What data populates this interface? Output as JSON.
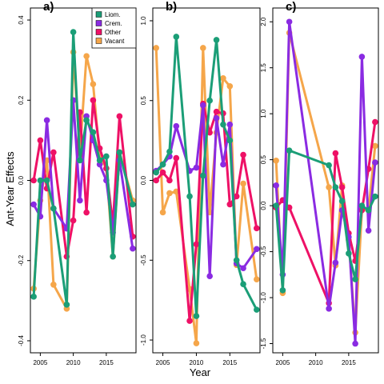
{
  "figure": {
    "ylabel": "Ant-Year Effects",
    "xlabel": "Year"
  },
  "colors": {
    "Liom.": "#1b9e77",
    "Crem.": "#8a2be2",
    "Other": "#ee1166",
    "Vacant": "#f5a64a"
  },
  "legend": {
    "entries": [
      "Liom.",
      "Crem.",
      "Other",
      "Vacant"
    ],
    "placement": "top-right of panel a"
  },
  "chart_data": [
    {
      "type": "line",
      "panel_label": "a)",
      "xlim": [
        2003.5,
        2019.5
      ],
      "ylim": [
        -0.43,
        0.43
      ],
      "x_ticks": [
        2005,
        2010,
        2015
      ],
      "x_tick_labels": [
        "2005",
        "2010",
        "2015"
      ],
      "y_ticks": [
        -0.4,
        -0.2,
        0.0,
        0.2,
        0.4
      ],
      "y_tick_labels": [
        "-0.4",
        "-0.2",
        "0.0",
        "0.2",
        "0.4"
      ],
      "series": [
        {
          "name": "Liom.",
          "x": [
            2004,
            2005,
            2006,
            2007,
            2009,
            2010,
            2011,
            2012,
            2013,
            2014,
            2015,
            2016,
            2017,
            2019
          ],
          "y": [
            -0.29,
            0.0,
            0.0,
            -0.07,
            -0.31,
            0.37,
            0.05,
            0.15,
            0.12,
            0.05,
            0.06,
            -0.19,
            0.07,
            -0.06
          ]
        },
        {
          "name": "Crem.",
          "x": [
            2004,
            2005,
            2006,
            2007,
            2009,
            2010,
            2011,
            2012,
            2013,
            2014,
            2015,
            2016,
            2017,
            2019
          ],
          "y": [
            -0.06,
            -0.09,
            0.15,
            -0.07,
            -0.12,
            0.2,
            -0.05,
            0.16,
            0.1,
            0.04,
            0.0,
            -0.13,
            0.05,
            -0.17
          ]
        },
        {
          "name": "Other",
          "x": [
            2004,
            2005,
            2006,
            2007,
            2009,
            2010,
            2011,
            2012,
            2013,
            2014,
            2015,
            2016,
            2017,
            2019
          ],
          "y": [
            0.0,
            0.1,
            -0.02,
            0.07,
            -0.19,
            -0.1,
            0.17,
            -0.08,
            0.2,
            0.08,
            0.03,
            -0.11,
            0.16,
            -0.14
          ]
        },
        {
          "name": "Vacant",
          "x": [
            2004,
            2005,
            2006,
            2007,
            2009,
            2010,
            2011,
            2012,
            2013,
            2014,
            2015,
            2016,
            2017,
            2019
          ],
          "y": [
            -0.27,
            -0.05,
            0.05,
            -0.26,
            -0.32,
            0.32,
            0.07,
            0.31,
            0.24,
            0.06,
            0.03,
            -0.19,
            0.07,
            -0.05
          ]
        }
      ]
    },
    {
      "type": "line",
      "panel_label": "b)",
      "xlim": [
        2003.5,
        2019.5
      ],
      "ylim": [
        -1.08,
        1.08
      ],
      "x_ticks": [
        2005,
        2010,
        2015
      ],
      "x_tick_labels": [
        "2005",
        "2010",
        "2015"
      ],
      "y_ticks": [
        -1.0,
        -0.5,
        0.0,
        0.5,
        1.0
      ],
      "y_tick_labels": [
        "-1.0",
        "-0.5",
        "0.0",
        "0.5",
        "1.0"
      ],
      "series": [
        {
          "name": "Liom.",
          "x": [
            2004,
            2005,
            2006,
            2007,
            2009,
            2010,
            2011,
            2012,
            2013,
            2014,
            2015,
            2016,
            2017,
            2019
          ],
          "y": [
            0.05,
            0.1,
            0.18,
            0.9,
            -0.1,
            -0.85,
            0.03,
            0.5,
            0.88,
            0.35,
            0.25,
            -0.5,
            -0.65,
            -0.81
          ]
        },
        {
          "name": "Crem.",
          "x": [
            2004,
            2005,
            2006,
            2007,
            2009,
            2010,
            2011,
            2012,
            2013,
            2014,
            2015,
            2016,
            2017,
            2019
          ],
          "y": [
            0.06,
            0.1,
            0.15,
            0.34,
            0.06,
            0.08,
            0.47,
            -0.6,
            0.39,
            0.1,
            0.35,
            -0.52,
            -0.55,
            -0.43
          ]
        },
        {
          "name": "Other",
          "x": [
            2004,
            2005,
            2006,
            2007,
            2009,
            2010,
            2011,
            2012,
            2013,
            2014,
            2015,
            2016,
            2017,
            2019
          ],
          "y": [
            0.0,
            0.05,
            0.0,
            0.14,
            -0.88,
            -0.4,
            0.48,
            0.3,
            0.43,
            0.42,
            -0.15,
            -0.1,
            0.16,
            -0.3
          ]
        },
        {
          "name": "Vacant",
          "x": [
            2004,
            2005,
            2006,
            2007,
            2009,
            2010,
            2011,
            2012,
            2013,
            2014,
            2015,
            2016,
            2017,
            2019
          ],
          "y": [
            0.83,
            -0.2,
            -0.08,
            -0.07,
            -0.68,
            -1.02,
            0.83,
            -0.2,
            0.3,
            0.64,
            0.59,
            -0.53,
            -0.02,
            -0.62
          ]
        }
      ]
    },
    {
      "type": "line",
      "panel_label": "c)",
      "xlim": [
        2003.5,
        2019.5
      ],
      "ylim": [
        -1.6,
        2.15
      ],
      "x_ticks": [
        2005,
        2010,
        2015
      ],
      "x_tick_labels": [
        "2005",
        "2010",
        "2015"
      ],
      "y_ticks": [
        -1.5,
        -1.0,
        -0.5,
        0.0,
        0.5,
        1.0,
        1.5,
        2.0
      ],
      "y_tick_labels": [
        "-1.5",
        "-1.0",
        "-0.5",
        "0.0",
        "0.5",
        "1.0",
        "1.5",
        "2.0"
      ],
      "series": [
        {
          "name": "Liom.",
          "x": [
            2004,
            2005,
            2006,
            2012,
            2013,
            2014,
            2015,
            2016,
            2017,
            2018,
            2019
          ],
          "y": [
            0.0,
            -0.92,
            0.6,
            0.44,
            0.2,
            0.05,
            -0.52,
            -0.8,
            0.0,
            -0.05,
            0.1
          ]
        },
        {
          "name": "Crem.",
          "x": [
            2004,
            2005,
            2006,
            2012,
            2013,
            2014,
            2015,
            2016,
            2017,
            2018,
            2019
          ],
          "y": [
            0.22,
            -0.75,
            2.0,
            -1.12,
            -0.62,
            -0.05,
            -0.34,
            -1.5,
            1.62,
            -0.27,
            0.47
          ]
        },
        {
          "name": "Other",
          "x": [
            2004,
            2005,
            2006,
            2012,
            2013,
            2014,
            2015,
            2016,
            2017,
            2018,
            2019
          ],
          "y": [
            -0.02,
            0.06,
            -0.02,
            -1.06,
            0.57,
            0.2,
            -0.3,
            -0.6,
            -0.05,
            0.4,
            0.91
          ]
        },
        {
          "name": "Vacant",
          "x": [
            2004,
            2005,
            2006,
            2012,
            2013,
            2014,
            2015,
            2016,
            2017,
            2018,
            2019
          ],
          "y": [
            0.49,
            -0.95,
            1.88,
            0.2,
            -0.65,
            0.22,
            -0.37,
            -1.38,
            -0.04,
            -0.05,
            0.65
          ]
        }
      ]
    }
  ]
}
